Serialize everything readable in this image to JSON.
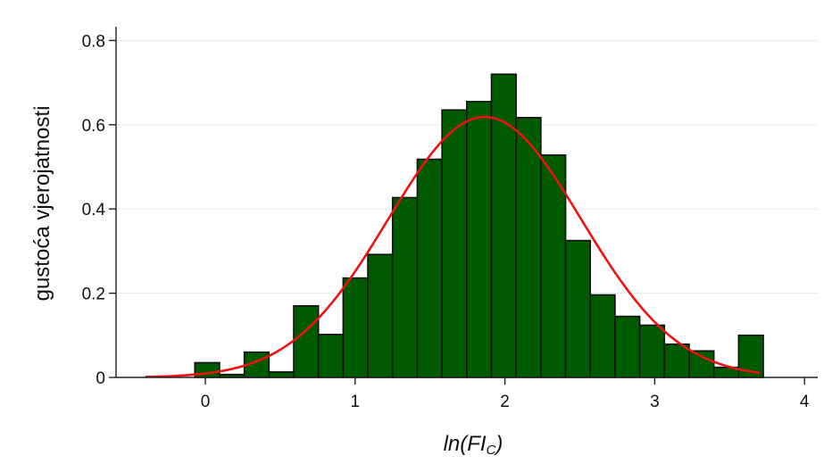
{
  "chart_data": {
    "type": "bar",
    "title": "",
    "ylabel": "gustoća vjerojatnosti",
    "xlabel": {
      "main": "ln(FI",
      "sub": "C",
      "close": ")"
    },
    "xlim": [
      -0.5,
      4.15
    ],
    "ylim": [
      0,
      0.82
    ],
    "xticks": [
      0,
      1,
      2,
      3,
      4
    ],
    "yticks": [
      0,
      0.2,
      0.4,
      0.6,
      0.8
    ],
    "ytick_labels": [
      "0",
      "0.2",
      "0.4",
      "0.6",
      "0.8"
    ],
    "grid": true,
    "colors": {
      "bar_fill": "#005a00",
      "bar_edge": "#111111",
      "curve": "#ee1111",
      "grid": "#e6eef2",
      "axis": "#222222"
    },
    "histogram": {
      "bin_width": 0.165,
      "bin_starts": [
        -0.07,
        0.095,
        0.26,
        0.425,
        0.59,
        0.755,
        0.92,
        1.085,
        1.25,
        1.415,
        1.58,
        1.745,
        1.91,
        2.075,
        2.24,
        2.405,
        2.57,
        2.735,
        2.9,
        3.065,
        3.23,
        3.395,
        3.56
      ],
      "densities": [
        0.035,
        0.007,
        0.06,
        0.013,
        0.17,
        0.102,
        0.236,
        0.292,
        0.427,
        0.518,
        0.635,
        0.655,
        0.72,
        0.617,
        0.528,
        0.325,
        0.196,
        0.145,
        0.124,
        0.079,
        0.063,
        0.024,
        0.1
      ]
    },
    "normal_curve": {
      "mean": 1.865,
      "sd": 0.645,
      "x_range": [
        -0.4,
        3.7
      ]
    }
  }
}
